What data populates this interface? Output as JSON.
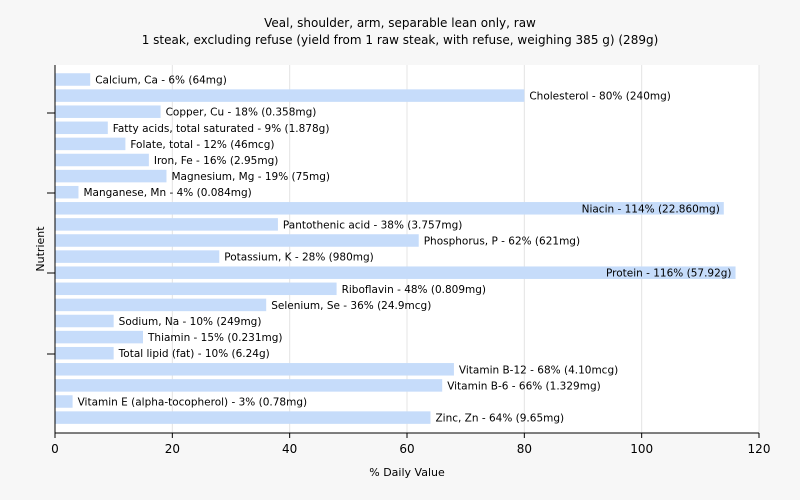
{
  "chart_data": {
    "type": "bar",
    "orientation": "horizontal",
    "title": "Veal, shoulder, arm, separable lean only, raw",
    "subtitle": "1 steak, excluding refuse (yield from 1 raw steak, with refuse, weighing 385 g) (289g)",
    "xlabel": "% Daily Value",
    "ylabel": "Nutrient",
    "xlim": [
      0,
      120
    ],
    "xticks": [
      0,
      20,
      40,
      60,
      80,
      100,
      120
    ],
    "grid": true,
    "bar_color": "#c6dcfa",
    "categories": [
      "Calcium, Ca",
      "Cholesterol",
      "Copper, Cu",
      "Fatty acids, total saturated",
      "Folate, total",
      "Iron, Fe",
      "Magnesium, Mg",
      "Manganese, Mn",
      "Niacin",
      "Pantothenic acid",
      "Phosphorus, P",
      "Potassium, K",
      "Protein",
      "Riboflavin",
      "Selenium, Se",
      "Sodium, Na",
      "Thiamin",
      "Total lipid (fat)",
      "Vitamin B-12",
      "Vitamin B-6",
      "Vitamin E (alpha-tocopherol)",
      "Zinc, Zn"
    ],
    "values": [
      6,
      80,
      18,
      9,
      12,
      16,
      19,
      4,
      114,
      38,
      62,
      28,
      116,
      48,
      36,
      10,
      15,
      10,
      68,
      66,
      3,
      64
    ],
    "labels": [
      "Calcium, Ca - 6% (64mg)",
      "Cholesterol - 80% (240mg)",
      "Copper, Cu - 18% (0.358mg)",
      "Fatty acids, total saturated - 9% (1.878g)",
      "Folate, total - 12% (46mcg)",
      "Iron, Fe - 16% (2.95mg)",
      "Magnesium, Mg - 19% (75mg)",
      "Manganese, Mn - 4% (0.084mg)",
      "Niacin - 114% (22.860mg)",
      "Pantothenic acid - 38% (3.757mg)",
      "Phosphorus, P - 62% (621mg)",
      "Potassium, K - 28% (980mg)",
      "Protein - 116% (57.92g)",
      "Riboflavin - 48% (0.809mg)",
      "Selenium, Se - 36% (24.9mcg)",
      "Sodium, Na - 10% (249mg)",
      "Thiamin - 15% (0.231mg)",
      "Total lipid (fat) - 10% (6.24g)",
      "Vitamin B-12 - 68% (4.10mcg)",
      "Vitamin B-6 - 66% (1.329mg)",
      "Vitamin E (alpha-tocopherol) - 3% (0.78mg)",
      "Zinc, Zn - 64% (9.65mg)"
    ]
  }
}
